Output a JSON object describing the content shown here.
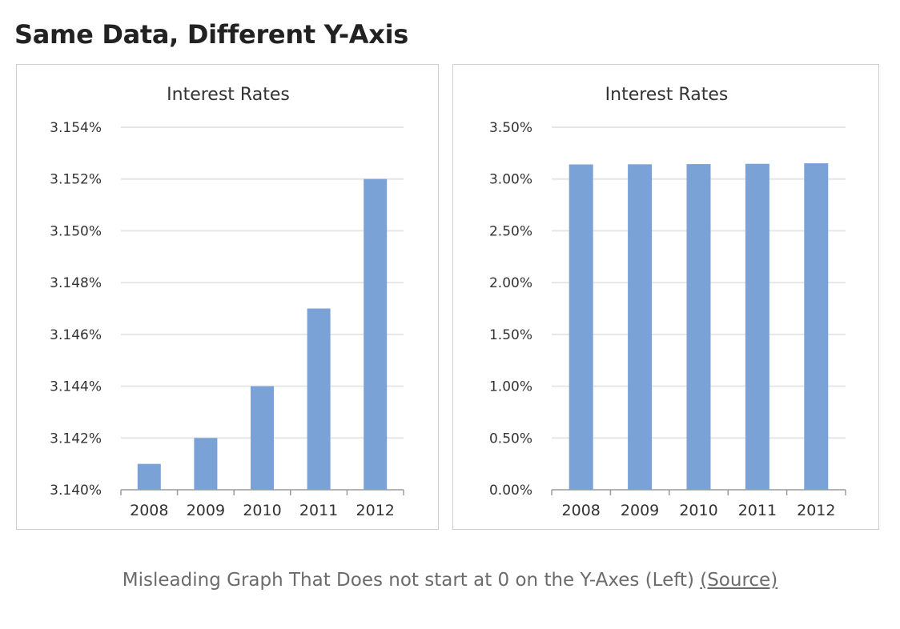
{
  "page": {
    "title": "Same Data, Different Y-Axis",
    "caption_text": "Misleading Graph That Does not start at 0 on the Y-Axes (Left) ",
    "caption_link": "(Source)"
  },
  "colors": {
    "bar": "#7aa2d6",
    "grid": "#e6e6e6",
    "axis": "#9a9a9a"
  },
  "chart_data": [
    {
      "type": "bar",
      "title": "Interest Rates",
      "categories": [
        "2008",
        "2009",
        "2010",
        "2011",
        "2012"
      ],
      "values": [
        3.141,
        3.142,
        3.144,
        3.147,
        3.152
      ],
      "ylim": [
        3.14,
        3.154
      ],
      "yticks": [
        3.14,
        3.142,
        3.144,
        3.146,
        3.148,
        3.15,
        3.152,
        3.154
      ],
      "ytick_labels": [
        "3.140%",
        "3.142%",
        "3.144%",
        "3.146%",
        "3.148%",
        "3.150%",
        "3.152%",
        "3.154%"
      ],
      "grid": true
    },
    {
      "type": "bar",
      "title": "Interest Rates",
      "categories": [
        "2008",
        "2009",
        "2010",
        "2011",
        "2012"
      ],
      "values": [
        3.141,
        3.142,
        3.144,
        3.147,
        3.152
      ],
      "ylim": [
        0,
        3.5
      ],
      "yticks": [
        0,
        0.5,
        1.0,
        1.5,
        2.0,
        2.5,
        3.0,
        3.5
      ],
      "ytick_labels": [
        "0.00%",
        "0.50%",
        "1.00%",
        "1.50%",
        "2.00%",
        "2.50%",
        "3.00%",
        "3.50%"
      ],
      "grid": true
    }
  ]
}
